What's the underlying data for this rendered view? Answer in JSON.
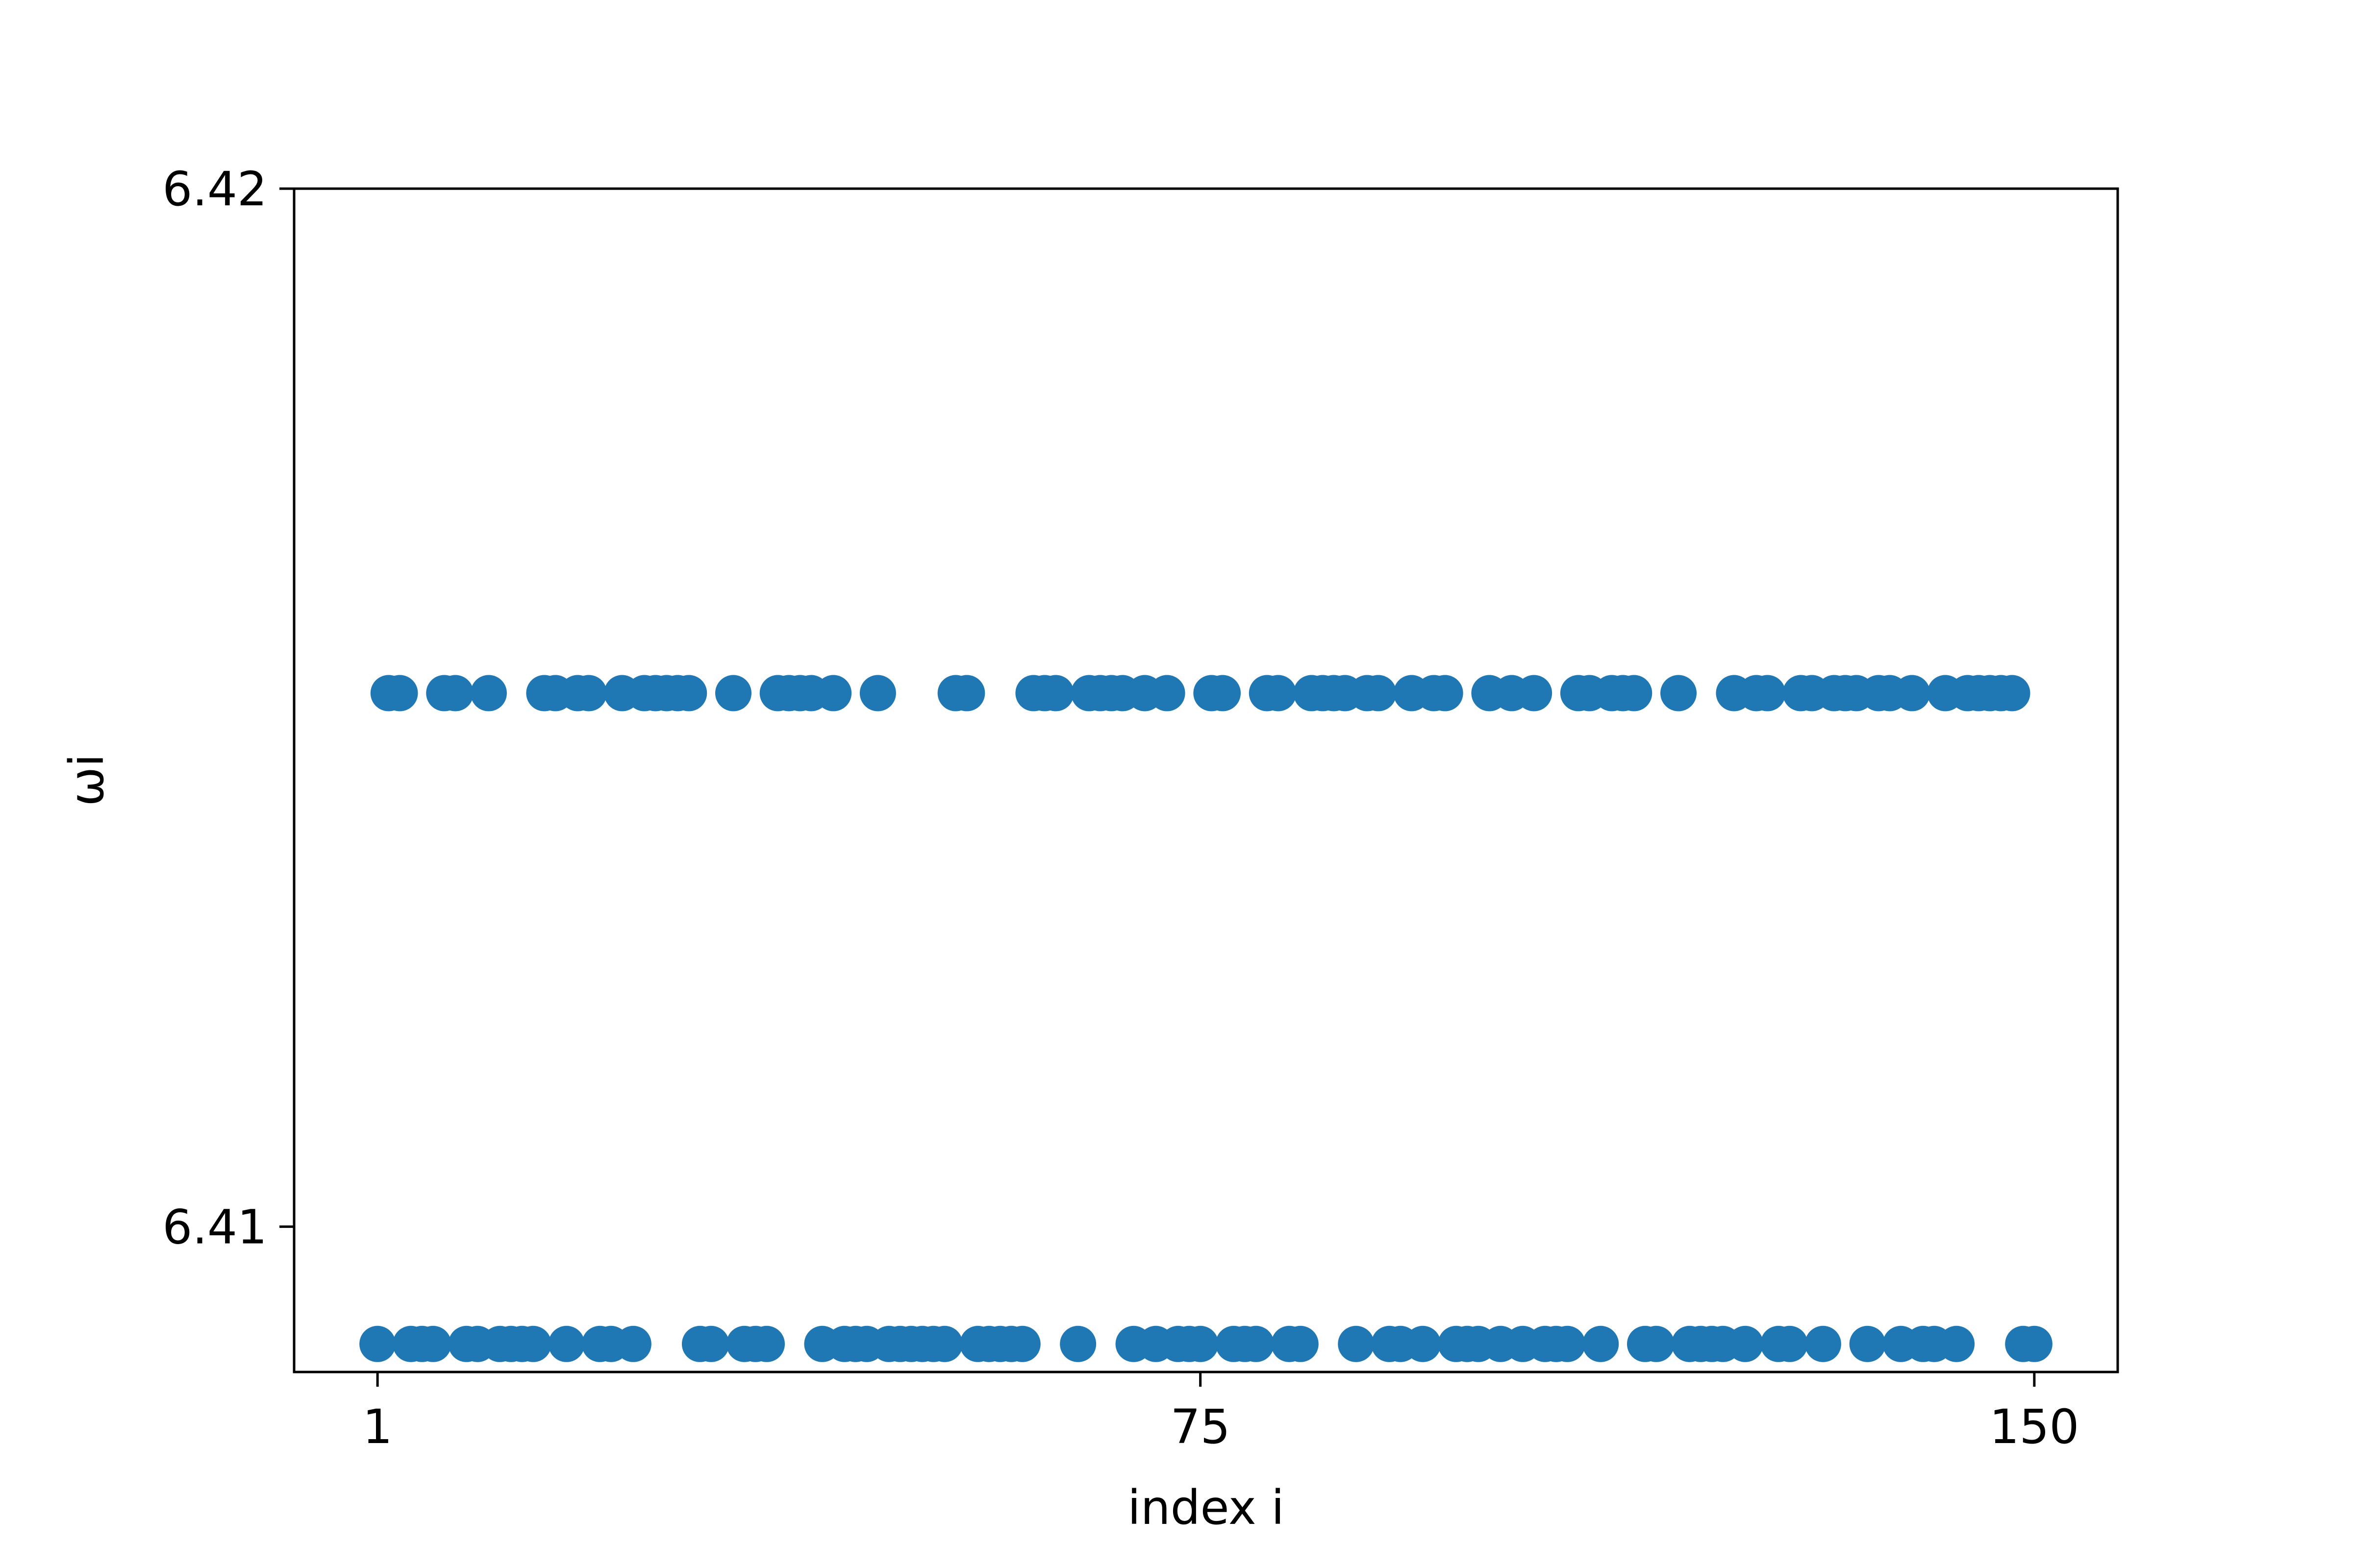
{
  "chart_data": {
    "type": "scatter",
    "title": "",
    "xlabel": "index i",
    "ylabel": "ωi",
    "xlim": [
      -6.5,
      157.5
    ],
    "ylim": [
      6.4086,
      6.42
    ],
    "xticks": [
      1,
      75,
      150
    ],
    "xtick_labels": [
      "1",
      "75",
      "150"
    ],
    "yticks": [
      6.41,
      6.42
    ],
    "ytick_labels": [
      "6.41",
      "6.42"
    ],
    "grid": false,
    "legend": "none",
    "colors": {
      "marker": "#1f77b4",
      "axes": "#000000",
      "background": "#ffffff"
    },
    "series": [
      {
        "x": [
          2,
          3,
          7,
          8,
          11,
          16,
          17,
          19,
          20,
          23,
          25,
          26,
          27,
          28,
          29,
          33,
          37,
          38,
          39,
          40,
          42,
          46,
          53,
          54,
          60,
          61,
          62,
          65,
          66,
          67,
          68,
          70,
          72,
          76,
          77,
          81,
          82,
          85,
          86,
          87,
          88,
          90,
          91,
          94,
          96,
          97,
          101,
          103,
          105,
          109,
          110,
          112,
          113,
          114,
          118,
          123,
          125,
          126,
          129,
          130,
          132,
          133,
          134,
          136,
          137,
          139,
          142,
          144,
          145,
          146,
          147,
          148
        ],
        "y": [
          6.41514,
          6.41514,
          6.41514,
          6.41514,
          6.41514,
          6.41514,
          6.41514,
          6.41514,
          6.41514,
          6.41514,
          6.41514,
          6.41514,
          6.41514,
          6.41514,
          6.41514,
          6.41514,
          6.41514,
          6.41514,
          6.41514,
          6.41514,
          6.41514,
          6.41514,
          6.41514,
          6.41514,
          6.41514,
          6.41514,
          6.41514,
          6.41514,
          6.41514,
          6.41514,
          6.41514,
          6.41514,
          6.41514,
          6.41514,
          6.41514,
          6.41514,
          6.41514,
          6.41514,
          6.41514,
          6.41514,
          6.41514,
          6.41514,
          6.41514,
          6.41514,
          6.41514,
          6.41514,
          6.41514,
          6.41514,
          6.41514,
          6.41514,
          6.41514,
          6.41514,
          6.41514,
          6.41514,
          6.41514,
          6.41514,
          6.41514,
          6.41514,
          6.41514,
          6.41514,
          6.41514,
          6.41514,
          6.41514,
          6.41514,
          6.41514,
          6.41514,
          6.41514,
          6.41514,
          6.41514,
          6.41514,
          6.41514,
          6.41514
        ]
      },
      {
        "x": [
          1,
          4,
          5,
          6,
          9,
          10,
          12,
          13,
          14,
          15,
          18,
          21,
          22,
          24,
          30,
          31,
          34,
          35,
          36,
          41,
          43,
          44,
          45,
          47,
          48,
          49,
          50,
          51,
          52,
          55,
          56,
          57,
          58,
          59,
          64,
          69,
          71,
          73,
          74,
          75,
          78,
          79,
          80,
          83,
          84,
          89,
          92,
          93,
          95,
          98,
          99,
          100,
          102,
          104,
          106,
          107,
          108,
          111,
          115,
          116,
          119,
          120,
          121,
          122,
          124,
          127,
          128,
          131,
          135,
          138,
          140,
          141,
          143,
          149,
          150
        ],
        "y": [
          6.40887,
          6.40887,
          6.40887,
          6.40887,
          6.40887,
          6.40887,
          6.40887,
          6.40887,
          6.40887,
          6.40887,
          6.40887,
          6.40887,
          6.40887,
          6.40887,
          6.40887,
          6.40887,
          6.40887,
          6.40887,
          6.40887,
          6.40887,
          6.40887,
          6.40887,
          6.40887,
          6.40887,
          6.40887,
          6.40887,
          6.40887,
          6.40887,
          6.40887,
          6.40887,
          6.40887,
          6.40887,
          6.40887,
          6.40887,
          6.40887,
          6.40887,
          6.40887,
          6.40887,
          6.40887,
          6.40887,
          6.40887,
          6.40887,
          6.40887,
          6.40887,
          6.40887,
          6.40887,
          6.40887,
          6.40887,
          6.40887,
          6.40887,
          6.40887,
          6.40887,
          6.40887,
          6.40887,
          6.40887,
          6.40887,
          6.40887,
          6.40887,
          6.40887,
          6.40887,
          6.40887,
          6.40887,
          6.40887,
          6.40887,
          6.40887,
          6.40887,
          6.40887,
          6.40887,
          6.40887,
          6.40887,
          6.40887,
          6.40887,
          6.40887,
          6.40887,
          6.40887
        ]
      }
    ]
  }
}
